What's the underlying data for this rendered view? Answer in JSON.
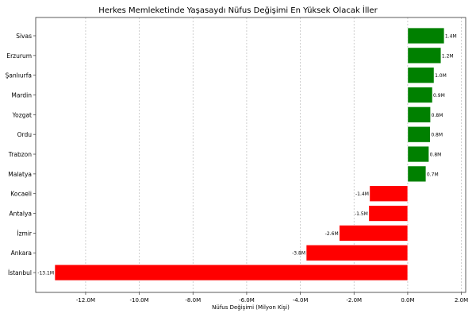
{
  "chart_data": {
    "type": "bar",
    "orientation": "horizontal",
    "title": "Herkes Memleketinde Yaşasaydı Nüfus Değişimi En Yüksek Olacak İller",
    "xlabel": "Nüfus Değişimi (Milyon Kişi)",
    "ylabel": "",
    "xlim": [
      -13.86,
      2.16
    ],
    "xticks": [
      -12,
      -10,
      -8,
      -6,
      -4,
      -2,
      0,
      2
    ],
    "xtick_labels": [
      "-12.0M",
      "-10.0M",
      "-8.0M",
      "-6.0M",
      "-4.0M",
      "-2.0M",
      "0.0M",
      "2.0M"
    ],
    "grid": "x, dashed",
    "categories": [
      "Sivas",
      "Erzurum",
      "Şanlıurfa",
      "Mardin",
      "Yozgat",
      "Ordu",
      "Trabzon",
      "Malatya",
      "Kocaeli",
      "Antalya",
      "İzmir",
      "Ankara",
      "İstanbul"
    ],
    "values": [
      1.36,
      1.24,
      0.98,
      0.92,
      0.85,
      0.84,
      0.79,
      0.68,
      -1.42,
      -1.45,
      -2.55,
      -3.78,
      -13.15
    ],
    "data_labels": [
      "1.4M",
      "1.2M",
      "1.0M",
      "0.9M",
      "0.8M",
      "0.8M",
      "0.8M",
      "0.7M",
      "-1.4M",
      "-1.5M",
      "-2.6M",
      "-3.8M",
      "-13.1M"
    ],
    "colors": {
      "positive": "#008000",
      "negative": "#ff0000"
    }
  }
}
